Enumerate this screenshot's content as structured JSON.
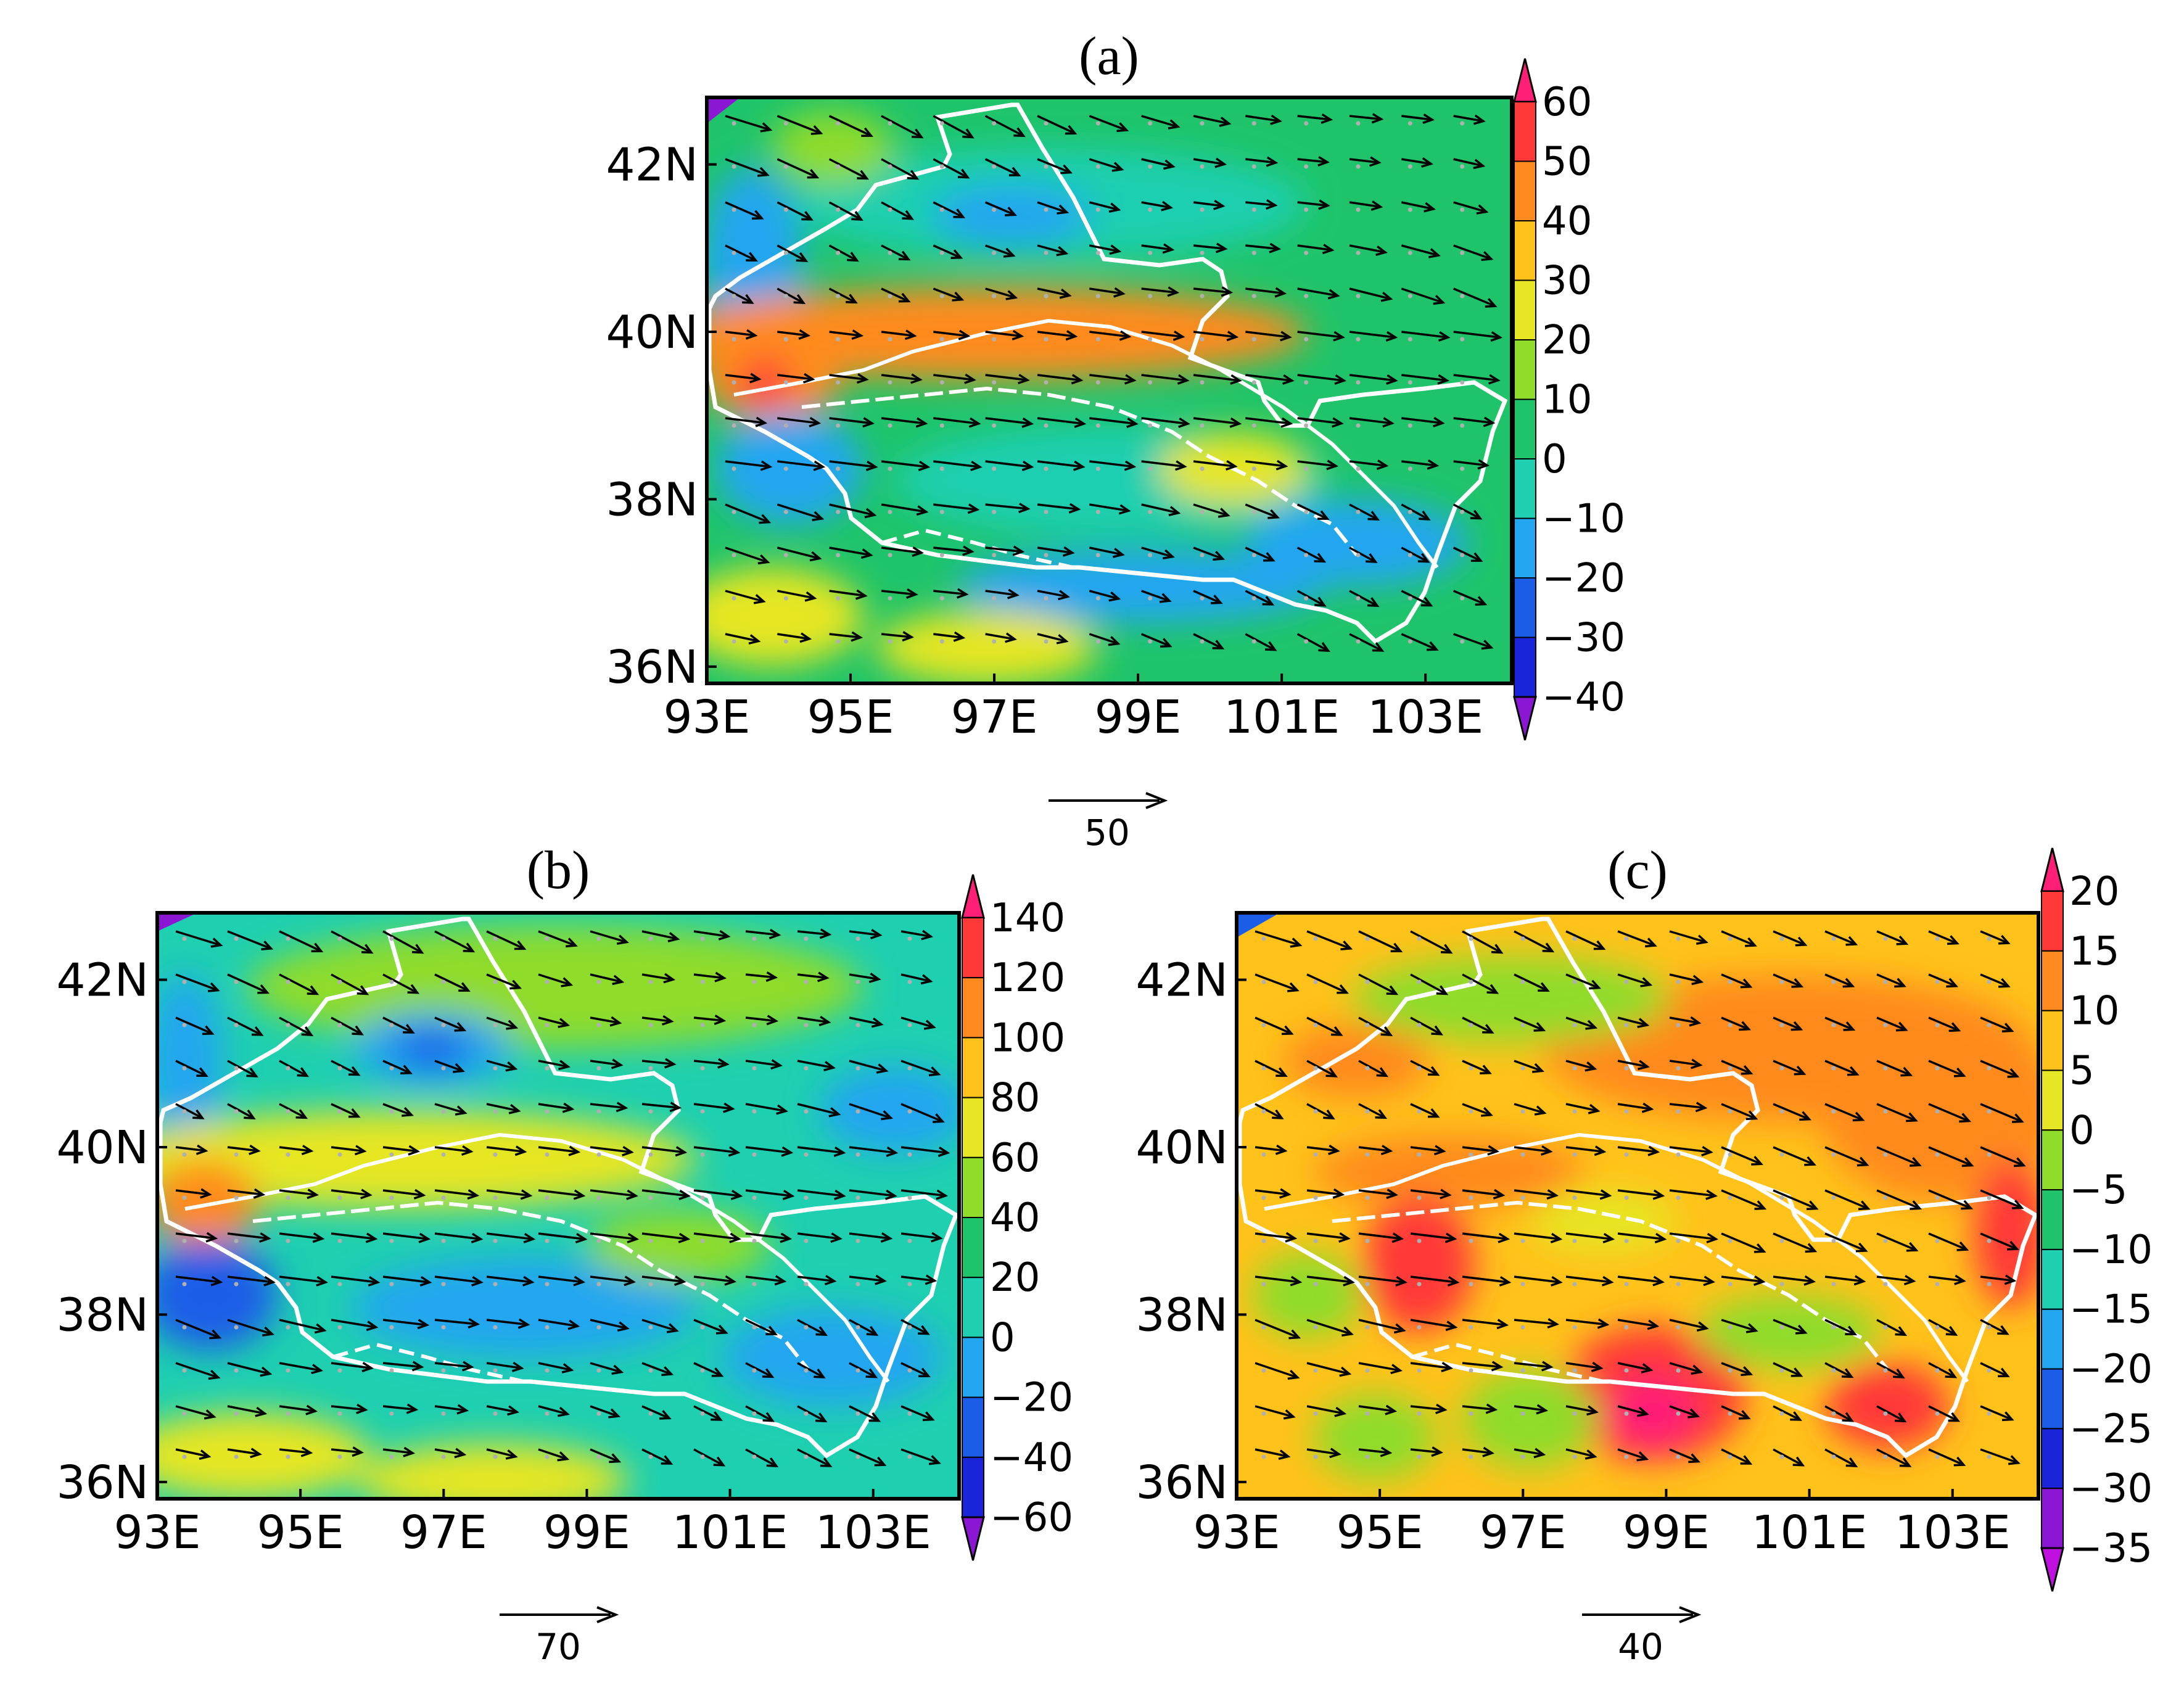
{
  "chart_data": [
    {
      "type": "heatmap",
      "title": "(a)",
      "x_ticks": [
        "93E",
        "95E",
        "97E",
        "99E",
        "101E",
        "103E"
      ],
      "y_ticks": [
        "42N",
        "40N",
        "38N",
        "36N"
      ],
      "x_range": [
        93,
        104.2
      ],
      "y_range": [
        35.8,
        42.8
      ],
      "colorbar_levels": [
        "60",
        "50",
        "40",
        "30",
        "20",
        "10",
        "0",
        "-10",
        "-20",
        "-30",
        "-40"
      ],
      "reference_vector": "50",
      "overlay": "wind vectors (eastward, tilted to south-east) and white boundary lines"
    },
    {
      "type": "heatmap",
      "title": "(b)",
      "x_ticks": [
        "93E",
        "95E",
        "97E",
        "99E",
        "101E",
        "103E"
      ],
      "y_ticks": [
        "42N",
        "40N",
        "38N",
        "36N"
      ],
      "x_range": [
        93,
        104.2
      ],
      "y_range": [
        35.8,
        42.8
      ],
      "colorbar_levels": [
        "140",
        "120",
        "100",
        "80",
        "60",
        "40",
        "20",
        "0",
        "-20",
        "-40",
        "-60"
      ],
      "reference_vector": "70",
      "overlay": "wind vectors and white boundary lines"
    },
    {
      "type": "heatmap",
      "title": "(c)",
      "x_ticks": [
        "93E",
        "95E",
        "97E",
        "99E",
        "101E",
        "103E"
      ],
      "y_ticks": [
        "42N",
        "40N",
        "38N",
        "36N"
      ],
      "x_range": [
        93,
        104.2
      ],
      "y_range": [
        35.8,
        42.8
      ],
      "colorbar_levels": [
        "20",
        "15",
        "10",
        "5",
        "0",
        "-5",
        "-10",
        "-15",
        "-20",
        "-25",
        "-30",
        "-35"
      ],
      "reference_vector": "40",
      "overlay": "wind vectors and white boundary lines"
    }
  ],
  "colors": {
    "scale_a": [
      "#ff1f77",
      "#ff3838",
      "#ff8a1f",
      "#ffc21a",
      "#e6e624",
      "#8fdc2a",
      "#1fc46a",
      "#1ecfb0",
      "#22a6f0",
      "#1c5de8",
      "#1a24d8",
      "#8b17d4"
    ],
    "scale_c": [
      "#ff1f77",
      "#ff3838",
      "#ff8a1f",
      "#ffc21a",
      "#e6e624",
      "#8fdc2a",
      "#1fc46a",
      "#1ecfb0",
      "#22a6f0",
      "#1c5de8",
      "#1a24d8",
      "#8b17d4",
      "#c010e0"
    ],
    "boundary": "#ffffff",
    "vector": "#000000"
  }
}
